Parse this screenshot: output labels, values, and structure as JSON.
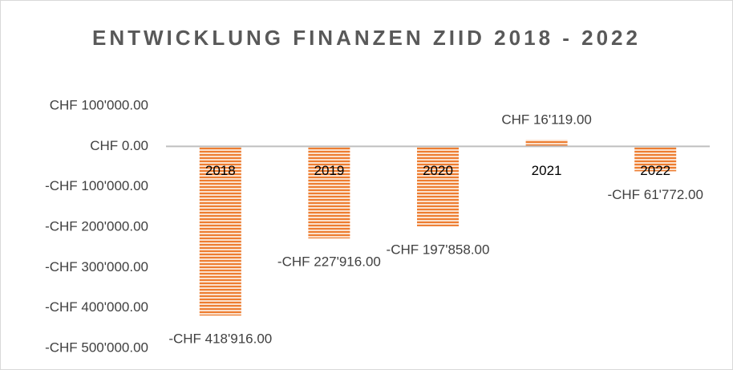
{
  "chart_data": {
    "type": "bar",
    "title": "ENTWICKLUNG FINANZEN ZIID 2018 - 2022",
    "categories": [
      "2018",
      "2019",
      "2020",
      "2021",
      "2022"
    ],
    "values": [
      -418916,
      -227916,
      -197858,
      16119,
      -61772
    ],
    "value_labels": [
      "-CHF 418'916.00",
      "-CHF 227'916.00",
      "-CHF 197'858.00",
      "CHF 16'119.00",
      "-CHF 61'772.00"
    ],
    "color": "#ed7d31",
    "ylim": [
      -500000,
      100000
    ],
    "yticks": [
      {
        "value": 100000,
        "label": "CHF 100'000.00"
      },
      {
        "value": 0,
        "label": "CHF 0.00"
      },
      {
        "value": -100000,
        "label": "-CHF 100'000.00"
      },
      {
        "value": -200000,
        "label": "-CHF 200'000.00"
      },
      {
        "value": -300000,
        "label": "-CHF 300'000.00"
      },
      {
        "value": -400000,
        "label": "-CHF 400'000.00"
      },
      {
        "value": -500000,
        "label": "-CHF 500'000.00"
      }
    ],
    "grid": false
  }
}
